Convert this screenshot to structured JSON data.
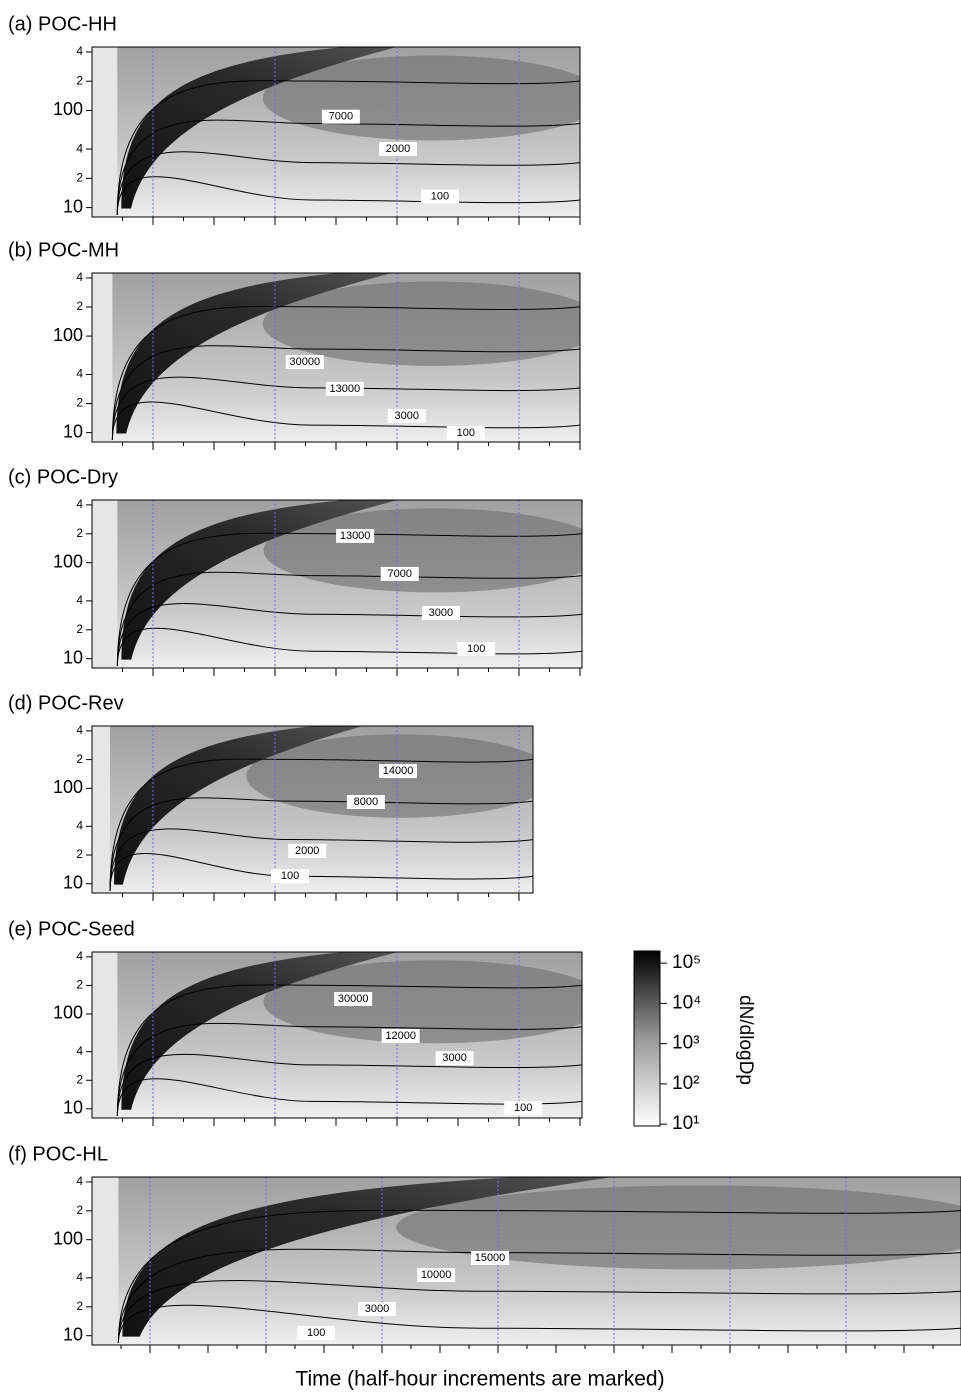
{
  "panels": [
    {
      "title": "(a) POC-HH",
      "contour_labels": [
        7000,
        2000,
        100
      ]
    },
    {
      "title": "(b) POC-MH",
      "contour_labels": [
        30000,
        13000,
        3000,
        100
      ]
    },
    {
      "title": "(c) POC-Dry",
      "contour_labels": [
        13000,
        7000,
        3000,
        100
      ]
    },
    {
      "title": "(d) POC-Rev",
      "contour_labels": [
        14000,
        8000,
        2000,
        100
      ]
    },
    {
      "title": "(e) POC-Seed",
      "contour_labels": [
        30000,
        12000,
        3000,
        100
      ]
    },
    {
      "title": "(f) POC-HL",
      "contour_labels": [
        15000,
        10000,
        3000,
        100
      ]
    }
  ],
  "y_axis": {
    "scale": "log",
    "ylim": [
      8,
      450
    ],
    "yticks": [
      10,
      {
        "value": 20,
        "label": "2"
      },
      {
        "value": 40,
        "label": "4"
      },
      100,
      {
        "value": 200,
        "label": "2"
      },
      {
        "value": 400,
        "label": "4"
      }
    ]
  },
  "colorbar": {
    "label": "dN/dlogDp",
    "scale": "log",
    "clim": [
      9,
      200000
    ],
    "ticks": [
      {
        "value": 10,
        "label": "10¹"
      },
      {
        "value": 100,
        "label": "10²"
      },
      {
        "value": 1000,
        "label": "10³"
      },
      {
        "value": 10000,
        "label": "10⁴"
      },
      {
        "value": 100000,
        "label": "10⁵"
      }
    ]
  },
  "x_label": "Time (half-hour increments are marked)"
}
